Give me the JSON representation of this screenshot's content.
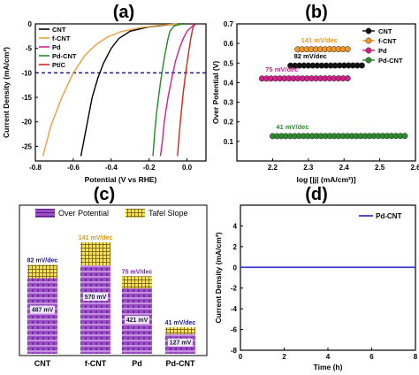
{
  "panel_letters": {
    "a": "(a)",
    "b": "(b)",
    "c": "(c)",
    "d": "(d)"
  },
  "chart_data": [
    {
      "panel": "(a)",
      "type": "line",
      "xlabel": "Potential (V vs RHE)",
      "ylabel": "Current Density (mA/cm²)",
      "xlim": [
        -0.8,
        0.1
      ],
      "ylim": [
        -28,
        0
      ],
      "xticks": [
        "-0.8",
        "-0.6",
        "-0.4",
        "-0.2",
        "0.0"
      ],
      "yticks": [
        "0",
        "-5",
        "-10",
        "-15",
        "-20",
        "-25"
      ],
      "reference_line": {
        "y": -10,
        "style": "dashed",
        "color": "#1a1a8c"
      },
      "legend_position": "top-left",
      "series": [
        {
          "name": "CNT",
          "color": "#000000",
          "x": [
            -0.02,
            -0.1,
            -0.2,
            -0.3,
            -0.36,
            -0.4,
            -0.44,
            -0.47,
            -0.5,
            -0.52,
            -0.54,
            -0.56
          ],
          "y": [
            0,
            -0.2,
            -0.6,
            -1.5,
            -3,
            -5,
            -8,
            -11,
            -15,
            -19,
            -23,
            -27
          ]
        },
        {
          "name": "f-CNT",
          "color": "#e8a13a",
          "x": [
            -0.05,
            -0.15,
            -0.25,
            -0.35,
            -0.42,
            -0.48,
            -0.54,
            -0.6,
            -0.66,
            -0.72,
            -0.76
          ],
          "y": [
            0,
            -0.3,
            -0.8,
            -1.6,
            -2.7,
            -4.2,
            -6.5,
            -10,
            -15,
            -21,
            -27
          ]
        },
        {
          "name": "Pd",
          "color": "#d0208a",
          "x": [
            0.05,
            0.03,
            0.0,
            -0.02,
            -0.04,
            -0.06,
            -0.08,
            -0.1,
            -0.12,
            -0.13,
            -0.14
          ],
          "y": [
            0,
            -0.4,
            -1.5,
            -3,
            -5,
            -7.5,
            -11,
            -15,
            -20,
            -24,
            -27
          ]
        },
        {
          "name": "Pd-CNT",
          "color": "#1f8a2a",
          "x": [
            -0.02,
            -0.05,
            -0.07,
            -0.09,
            -0.1,
            -0.12,
            -0.14,
            -0.16,
            -0.17,
            -0.18
          ],
          "y": [
            0,
            -0.2,
            -0.5,
            -1.5,
            -3,
            -7,
            -12,
            -18,
            -22,
            -27
          ]
        },
        {
          "name": "Pt/C",
          "color": "#cc2a1a",
          "x": [
            0.04,
            0.03,
            0.02,
            0.01,
            0.0,
            -0.01,
            -0.02,
            -0.03,
            -0.04,
            -0.05
          ],
          "y": [
            0,
            -1,
            -3,
            -5.5,
            -8,
            -11,
            -14,
            -18,
            -22,
            -27
          ]
        }
      ]
    },
    {
      "panel": "(b)",
      "type": "scatter",
      "xlabel": "log [|j| (mA/cm²)]",
      "ylabel": "Over Potential (V)",
      "xlim": [
        2.1,
        2.6
      ],
      "ylim": [
        0.0,
        0.7
      ],
      "xticks": [
        "2.2",
        "2.3",
        "2.4",
        "2.5",
        "2.6"
      ],
      "yticks": [
        "0.1",
        "0.2",
        "0.3",
        "0.4",
        "0.5",
        "0.6",
        "0.7"
      ],
      "legend_position": "top-right",
      "series": [
        {
          "name": "CNT",
          "color": "#111111",
          "slope_label": "82 mV/dec",
          "x_start": 2.25,
          "x_end": 2.45,
          "y_start": 0.487,
          "slope": 0.082
        },
        {
          "name": "f-CNT",
          "color": "#f0982a",
          "slope_label": "141 mV/dec",
          "x_start": 2.27,
          "x_end": 2.41,
          "y_start": 0.57,
          "slope": 0.141
        },
        {
          "name": "Pd",
          "color": "#d0208a",
          "slope_label": "75 mV/dec",
          "x_start": 2.17,
          "x_end": 2.41,
          "y_start": 0.421,
          "slope": 0.075
        },
        {
          "name": "Pd-CNT",
          "color": "#2e8b2e",
          "slope_label": "41 mV/dec",
          "x_start": 2.2,
          "x_end": 2.57,
          "y_start": 0.127,
          "slope": 0.041
        }
      ]
    },
    {
      "panel": "(c)",
      "type": "bar",
      "categories": [
        "CNT",
        "f-CNT",
        "Pd",
        "Pd-CNT"
      ],
      "legend": [
        "Over Potential",
        "Tafel Slope"
      ],
      "legend_colors": [
        "#9b4fc4",
        "#f2ee3c"
      ],
      "over_potential_mV": [
        487,
        570,
        421,
        127
      ],
      "tafel_slope_mV_dec": [
        82,
        141,
        75,
        41
      ],
      "over_potential_labels": [
        "487 mV",
        "570 mV",
        "421 mV",
        "127 mV"
      ],
      "tafel_labels": [
        "82 mV/dec",
        "141 mV/dec",
        "75 mV/dec",
        "41 mV/dec"
      ],
      "tafel_label_colors": [
        "#1a1a8c",
        "#d89a20",
        "#7a2aa0",
        "#1a1a8c"
      ]
    },
    {
      "panel": "(d)",
      "type": "line",
      "xlabel": "Time (h)",
      "ylabel": "Current Density (mA/cm²)",
      "xlim": [
        0,
        8
      ],
      "ylim": [
        -8,
        6
      ],
      "xticks": [
        "0",
        "2",
        "4",
        "6",
        "8"
      ],
      "yticks": [
        "4",
        "2",
        "0",
        "-2",
        "-4",
        "-6",
        "-8"
      ],
      "legend_position": "top-right",
      "series": [
        {
          "name": "Pd-CNT",
          "color": "#3a3acc",
          "x": [
            0,
            8
          ],
          "y": [
            0,
            0
          ]
        }
      ]
    }
  ]
}
